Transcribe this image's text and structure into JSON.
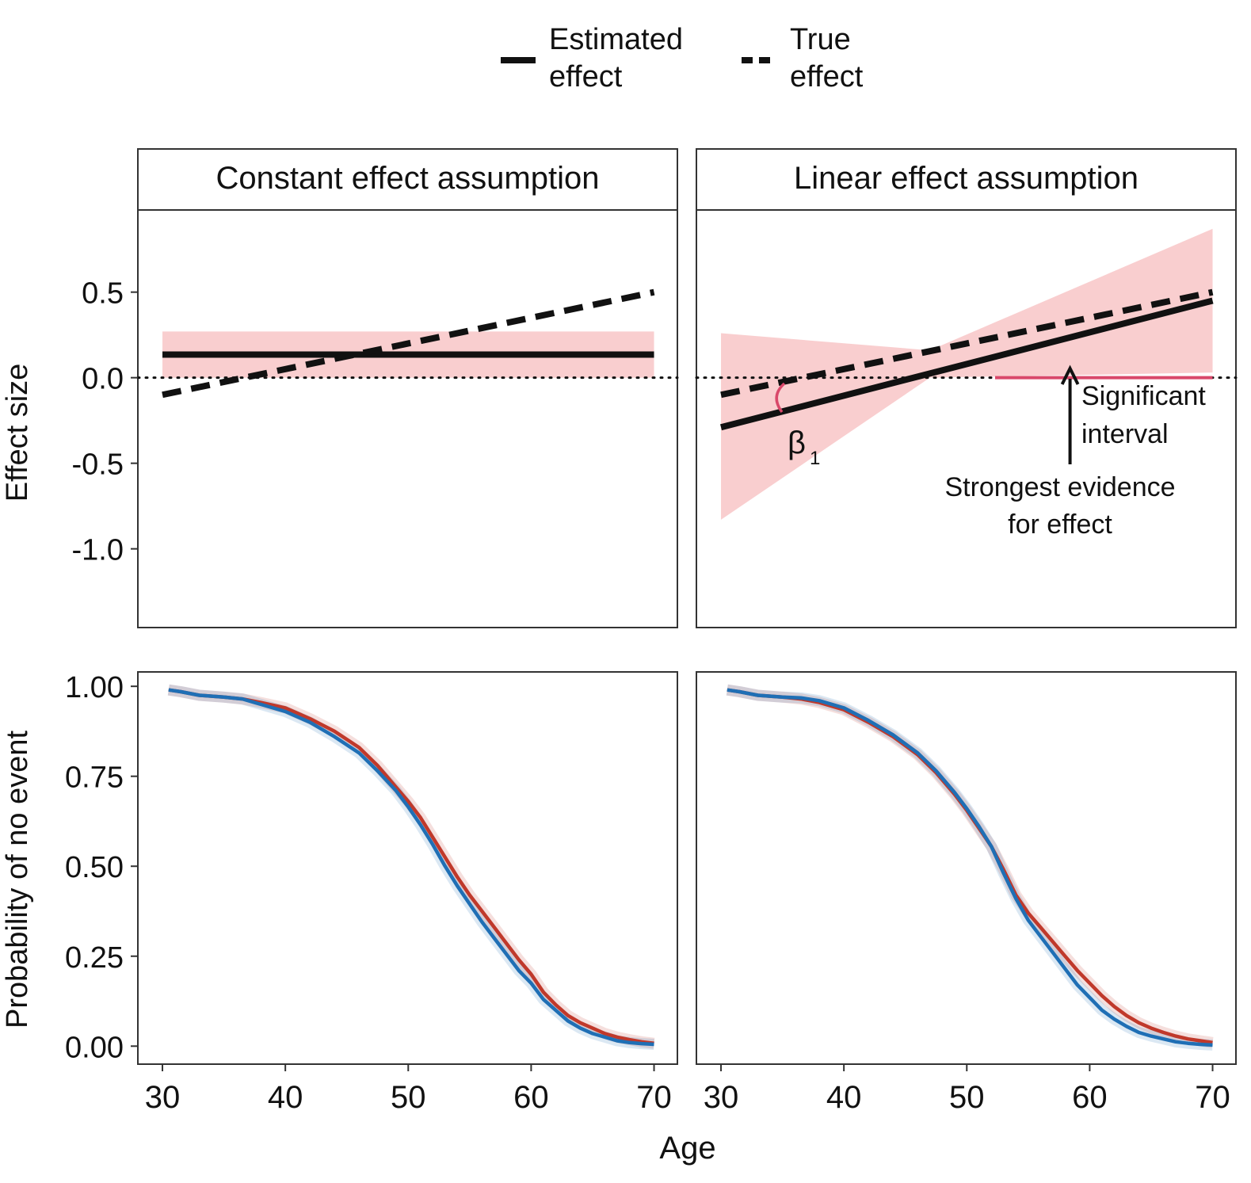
{
  "legend": {
    "estimated_line1": "Estimated",
    "estimated_line2": "effect",
    "true_line1": "True",
    "true_line2": "effect"
  },
  "colors": {
    "band_fill": "#f4a6a8",
    "significant": "#d9486a",
    "red_curve": "#c0392b",
    "blue_curve": "#1f6fb5",
    "line": "#111111"
  },
  "chart_data": [
    {
      "id": "constant-top",
      "type": "line",
      "panel_title": "Constant effect assumption",
      "ylabel": "Effect size",
      "x": [
        30,
        70
      ],
      "xlim": [
        28,
        71.9
      ],
      "ylim": [
        -1.46,
        0.98
      ],
      "yticks": [
        0.5,
        0.0,
        -0.5,
        -1.0
      ],
      "ytick_labels": [
        "0.5",
        "0.0",
        "-0.5",
        "-1.0"
      ],
      "reference_line": 0,
      "series": [
        {
          "name": "Estimated effect",
          "style": "solid",
          "values": [
            0.135,
            0.135
          ]
        },
        {
          "name": "True effect",
          "style": "dashed",
          "values": [
            -0.1,
            0.5
          ]
        },
        {
          "name": "95% band",
          "style": "band",
          "lower": [
            0.0,
            0.0
          ],
          "upper": [
            0.27,
            0.27
          ]
        }
      ]
    },
    {
      "id": "linear-top",
      "type": "line",
      "panel_title": "Linear effect assumption",
      "x": [
        30,
        70
      ],
      "xlim": [
        28,
        71.9
      ],
      "ylim": [
        -1.46,
        0.98
      ],
      "reference_line": 0,
      "series": [
        {
          "name": "Estimated effect",
          "style": "solid",
          "values": [
            -0.29,
            0.45
          ]
        },
        {
          "name": "True effect",
          "style": "dashed",
          "values": [
            -0.1,
            0.5
          ]
        },
        {
          "name": "95% band",
          "style": "band",
          "x": [
            30,
            47,
            70
          ],
          "lower": [
            -0.83,
            0.0,
            0.03
          ],
          "upper": [
            0.26,
            0.16,
            0.87
          ]
        }
      ],
      "significant_interval": [
        52.3,
        70
      ],
      "annotations": {
        "beta_symbol": "β",
        "beta_subscript": "1",
        "significant_line1": "Significant",
        "significant_line2": "interval",
        "evidence_line1": "Strongest evidence",
        "evidence_line2": "for effect",
        "arrow_x": 58.4
      }
    },
    {
      "id": "constant-bottom",
      "type": "line",
      "ylabel": "Probability of no event",
      "xlabel": "Age",
      "xlim": [
        28,
        71.9
      ],
      "ylim": [
        -0.05,
        1.04
      ],
      "xticks": [
        30,
        40,
        50,
        60,
        70
      ],
      "xtick_labels": [
        "30",
        "40",
        "50",
        "60",
        "70"
      ],
      "yticks": [
        1.0,
        0.75,
        0.5,
        0.25,
        0.0
      ],
      "ytick_labels": [
        "1.00",
        "0.75",
        "0.50",
        "0.25",
        "0.00"
      ],
      "series": [
        {
          "name": "Red group",
          "color": "red",
          "x": [
            30.5,
            31.5,
            33,
            35,
            36.5,
            38,
            40,
            42,
            44,
            46,
            47.5,
            49,
            50,
            51,
            52,
            53,
            54,
            55,
            56,
            57,
            58,
            59,
            60,
            61,
            62,
            63,
            64,
            65,
            66,
            67,
            68,
            69,
            70
          ],
          "values": [
            0.99,
            0.985,
            0.975,
            0.97,
            0.965,
            0.955,
            0.94,
            0.91,
            0.875,
            0.83,
            0.78,
            0.72,
            0.68,
            0.635,
            0.58,
            0.525,
            0.47,
            0.42,
            0.375,
            0.33,
            0.285,
            0.24,
            0.2,
            0.15,
            0.115,
            0.085,
            0.065,
            0.05,
            0.035,
            0.025,
            0.018,
            0.012,
            0.008
          ]
        },
        {
          "name": "Blue group",
          "color": "blue",
          "x": [
            30.5,
            31.5,
            33,
            35,
            36.5,
            38,
            40,
            42,
            44,
            46,
            47.5,
            49,
            50,
            51,
            52,
            53,
            54,
            55,
            56,
            57,
            58,
            59,
            60,
            61,
            62,
            63,
            64,
            65,
            66,
            67,
            68,
            69,
            70
          ],
          "values": [
            0.99,
            0.985,
            0.975,
            0.97,
            0.965,
            0.95,
            0.93,
            0.9,
            0.86,
            0.815,
            0.765,
            0.71,
            0.665,
            0.615,
            0.56,
            0.5,
            0.445,
            0.395,
            0.345,
            0.3,
            0.255,
            0.21,
            0.175,
            0.13,
            0.1,
            0.07,
            0.05,
            0.035,
            0.025,
            0.015,
            0.01,
            0.007,
            0.005
          ]
        }
      ]
    },
    {
      "id": "linear-bottom",
      "type": "line",
      "xlim": [
        28,
        71.9
      ],
      "ylim": [
        -0.05,
        1.04
      ],
      "xticks": [
        30,
        40,
        50,
        60,
        70
      ],
      "xtick_labels": [
        "30",
        "40",
        "50",
        "60",
        "70"
      ],
      "series": [
        {
          "name": "Red group",
          "color": "red",
          "x": [
            30.5,
            31.5,
            33,
            35,
            36.5,
            38,
            40,
            42,
            44,
            46,
            47.5,
            49,
            50,
            51,
            52,
            53,
            54,
            55,
            56,
            57,
            58,
            59,
            60,
            61,
            62,
            63,
            64,
            65,
            66,
            67,
            68,
            69,
            70
          ],
          "values": [
            0.99,
            0.985,
            0.975,
            0.97,
            0.965,
            0.955,
            0.935,
            0.9,
            0.86,
            0.81,
            0.76,
            0.7,
            0.655,
            0.605,
            0.555,
            0.49,
            0.42,
            0.37,
            0.33,
            0.29,
            0.25,
            0.21,
            0.175,
            0.14,
            0.11,
            0.085,
            0.065,
            0.05,
            0.038,
            0.028,
            0.02,
            0.015,
            0.01
          ]
        },
        {
          "name": "Blue group",
          "color": "blue",
          "x": [
            30.5,
            31.5,
            33,
            35,
            36.5,
            38,
            40,
            42,
            44,
            46,
            47.5,
            49,
            50,
            51,
            52,
            53,
            54,
            55,
            56,
            57,
            58,
            59,
            60,
            61,
            62,
            63,
            64,
            65,
            66,
            67,
            68,
            69,
            70
          ],
          "values": [
            0.99,
            0.985,
            0.975,
            0.97,
            0.968,
            0.96,
            0.94,
            0.905,
            0.865,
            0.815,
            0.765,
            0.705,
            0.66,
            0.61,
            0.555,
            0.48,
            0.41,
            0.35,
            0.305,
            0.26,
            0.215,
            0.17,
            0.135,
            0.1,
            0.075,
            0.055,
            0.038,
            0.028,
            0.02,
            0.012,
            0.008,
            0.005,
            0.003
          ]
        }
      ]
    }
  ]
}
